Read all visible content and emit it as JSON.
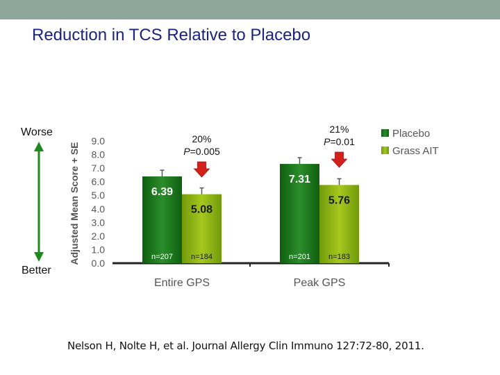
{
  "slide": {
    "title": "Reduction in TCS Relative to Placebo",
    "worse_label": "Worse",
    "better_label": "Better",
    "citation": "Nelson H, Nolte H, et al. Journal Allergy Clin Immuno 127:72-80, 2011."
  },
  "colors": {
    "header_bar": "#8fa69a",
    "title": "#1a237e",
    "placebo": "#1e7a1e",
    "grass_ait": "#8fb816",
    "arrow_green": "#1e8a1e",
    "annotation_arrow": "#d3201a"
  },
  "chart_data": {
    "type": "bar",
    "categories": [
      "Entire GPS",
      "Peak GPS"
    ],
    "series": [
      {
        "name": "Placebo",
        "values": [
          6.39,
          7.31
        ],
        "n": [
          "n=207",
          "n=201"
        ],
        "value_labels": [
          "6.39",
          "7.31"
        ]
      },
      {
        "name": "Grass AIT",
        "values": [
          5.08,
          5.76
        ],
        "n": [
          "n=184",
          "n=183"
        ],
        "value_labels": [
          "5.08",
          "5.76"
        ]
      }
    ],
    "ylabel": "Adjusted Mean Score + SE",
    "ylim": [
      0,
      9
    ],
    "yticks": [
      "0.0",
      "1.0",
      "2.0",
      "3.0",
      "4.0",
      "5.0",
      "6.0",
      "7.0",
      "8.0",
      "9.0"
    ],
    "annotations": [
      {
        "percent": "20%",
        "p_prefix": "P",
        "p_suffix": "=0.005"
      },
      {
        "percent": "21%",
        "p_prefix": "P",
        "p_suffix": "=0.01"
      }
    ],
    "legend_position": "top-right",
    "grid": false
  }
}
